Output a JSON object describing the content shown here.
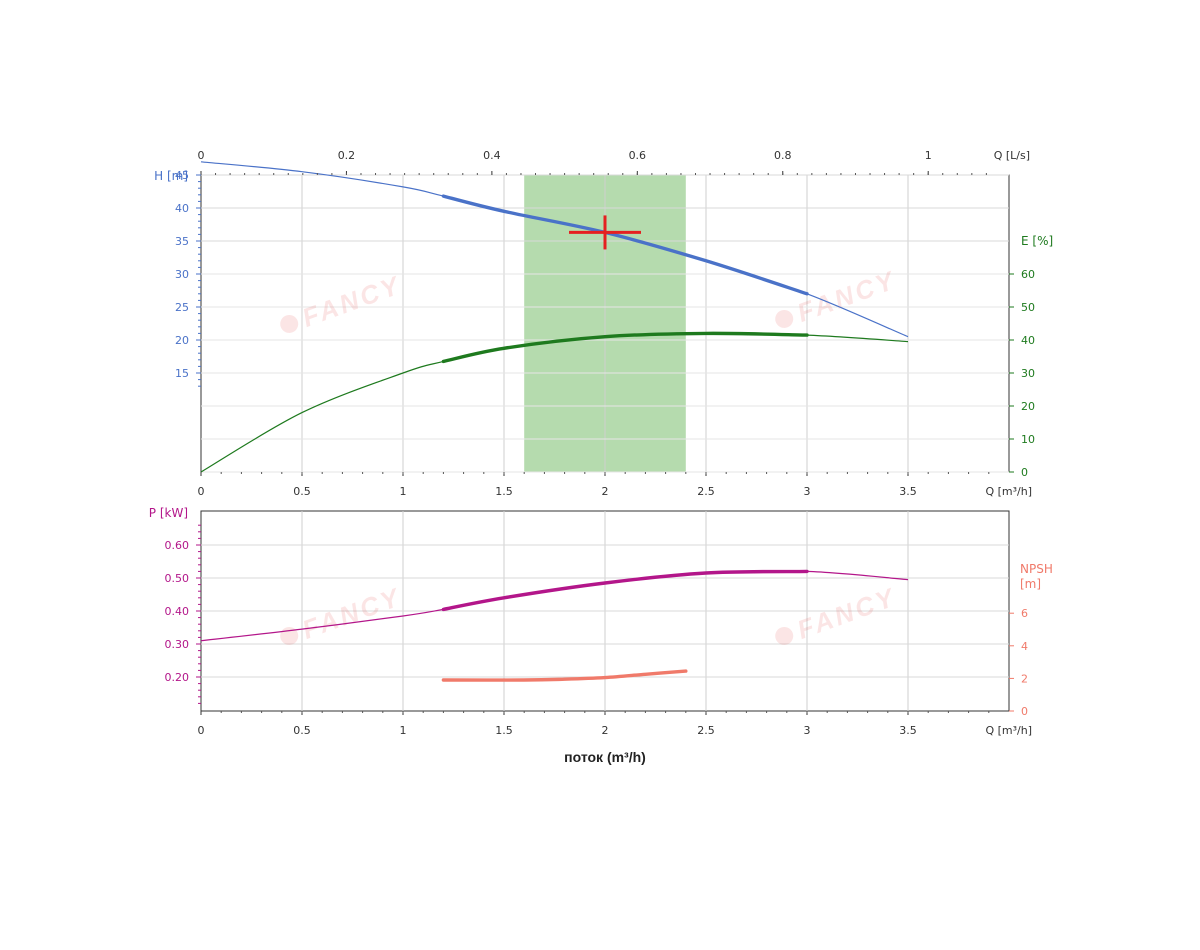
{
  "chart_data": [
    {
      "type": "line",
      "x": {
        "label": "Q [m³/h]",
        "range": [
          0,
          3.5
        ],
        "ticks": [
          0,
          0.5,
          1,
          1.5,
          2,
          2.5,
          3,
          3.5
        ],
        "tick_labels": [
          "0",
          "0.5",
          "1",
          "1.5",
          "2",
          "2.5",
          "3",
          "3.5"
        ]
      },
      "x_top": {
        "label": "Q [L/s]",
        "ticks": [
          0,
          0.2,
          0.4,
          0.6,
          0.8,
          1
        ],
        "tick_labels": [
          "0",
          "0.2",
          "0.4",
          "0.6",
          "0.8",
          "1"
        ]
      },
      "y_left": {
        "label": "H [m]",
        "range": [
          0,
          45
        ],
        "ticks": [
          15,
          20,
          25,
          30,
          35,
          40,
          45
        ],
        "tick_labels": [
          "15",
          "20",
          "25",
          "30",
          "35",
          "40",
          "45"
        ],
        "color": "#4a72c8"
      },
      "y_right": {
        "label": "E [%]",
        "range": [
          0,
          60
        ],
        "ticks": [
          0,
          10,
          20,
          30,
          40,
          50,
          60
        ],
        "tick_labels": [
          "0",
          "10",
          "20",
          "30",
          "40",
          "50",
          "60"
        ],
        "color": "#1e7a1e"
      },
      "grid": true,
      "shaded_region": {
        "x_from": 1.6,
        "x_to": 2.4,
        "color": "#a8d5a0"
      },
      "duty_point": {
        "x": 2.0,
        "y": 36.3,
        "color": "#e52020"
      },
      "series": [
        {
          "axis": "left",
          "color": "#4a72c8",
          "bold_range": [
            1.2,
            3.0
          ],
          "x": [
            0,
            0.5,
            1,
            1.2,
            1.5,
            2,
            2.5,
            3,
            3.5
          ],
          "values": [
            47,
            45.5,
            43.2,
            41.8,
            39.5,
            36.3,
            32,
            27,
            20.5
          ]
        },
        {
          "axis": "right",
          "color": "#1e7a1e",
          "bold_range": [
            1.2,
            3.0
          ],
          "x": [
            0,
            0.5,
            1,
            1.2,
            1.5,
            2,
            2.5,
            3,
            3.5
          ],
          "values": [
            0,
            18,
            30,
            33.5,
            37.5,
            41,
            42,
            41.5,
            39.5
          ]
        }
      ]
    },
    {
      "type": "line",
      "x": {
        "label": "Q [m³/h]",
        "range": [
          0,
          3.5
        ],
        "ticks": [
          0,
          0.5,
          1,
          1.5,
          2,
          2.5,
          3,
          3.5
        ],
        "tick_labels": [
          "0",
          "0.5",
          "1",
          "1.5",
          "2",
          "2.5",
          "3",
          "3.5"
        ]
      },
      "xlabel": "поток (m³/h)",
      "y_left": {
        "label": "P [kW]",
        "range": [
          0.1,
          0.7
        ],
        "ticks": [
          0.2,
          0.3,
          0.4,
          0.5,
          0.6
        ],
        "tick_labels": [
          "0.20",
          "0.30",
          "0.40",
          "0.50",
          "0.60"
        ],
        "color": "#b3168a"
      },
      "y_right": {
        "label_lines": [
          "NPSH",
          "[m]"
        ],
        "range": [
          0,
          8
        ],
        "ticks": [
          0,
          2,
          4,
          6
        ],
        "tick_labels": [
          "0",
          "2",
          "4",
          "6"
        ],
        "color": "#f07a6a"
      },
      "grid": true,
      "series": [
        {
          "axis": "left",
          "color": "#b3168a",
          "bold_range": [
            1.2,
            3.0
          ],
          "x": [
            0,
            0.5,
            1,
            1.2,
            1.5,
            2,
            2.5,
            3,
            3.5
          ],
          "values": [
            0.31,
            0.345,
            0.385,
            0.405,
            0.44,
            0.485,
            0.515,
            0.52,
            0.495
          ]
        },
        {
          "axis": "right",
          "color": "#f07a6a",
          "bold_range": [
            1.2,
            2.4
          ],
          "x": [
            1.2,
            1.6,
            1.8,
            2.0,
            2.2,
            2.4
          ],
          "values": [
            1.9,
            1.9,
            1.95,
            2.05,
            2.25,
            2.45
          ]
        }
      ]
    }
  ],
  "watermark": "FANCY"
}
